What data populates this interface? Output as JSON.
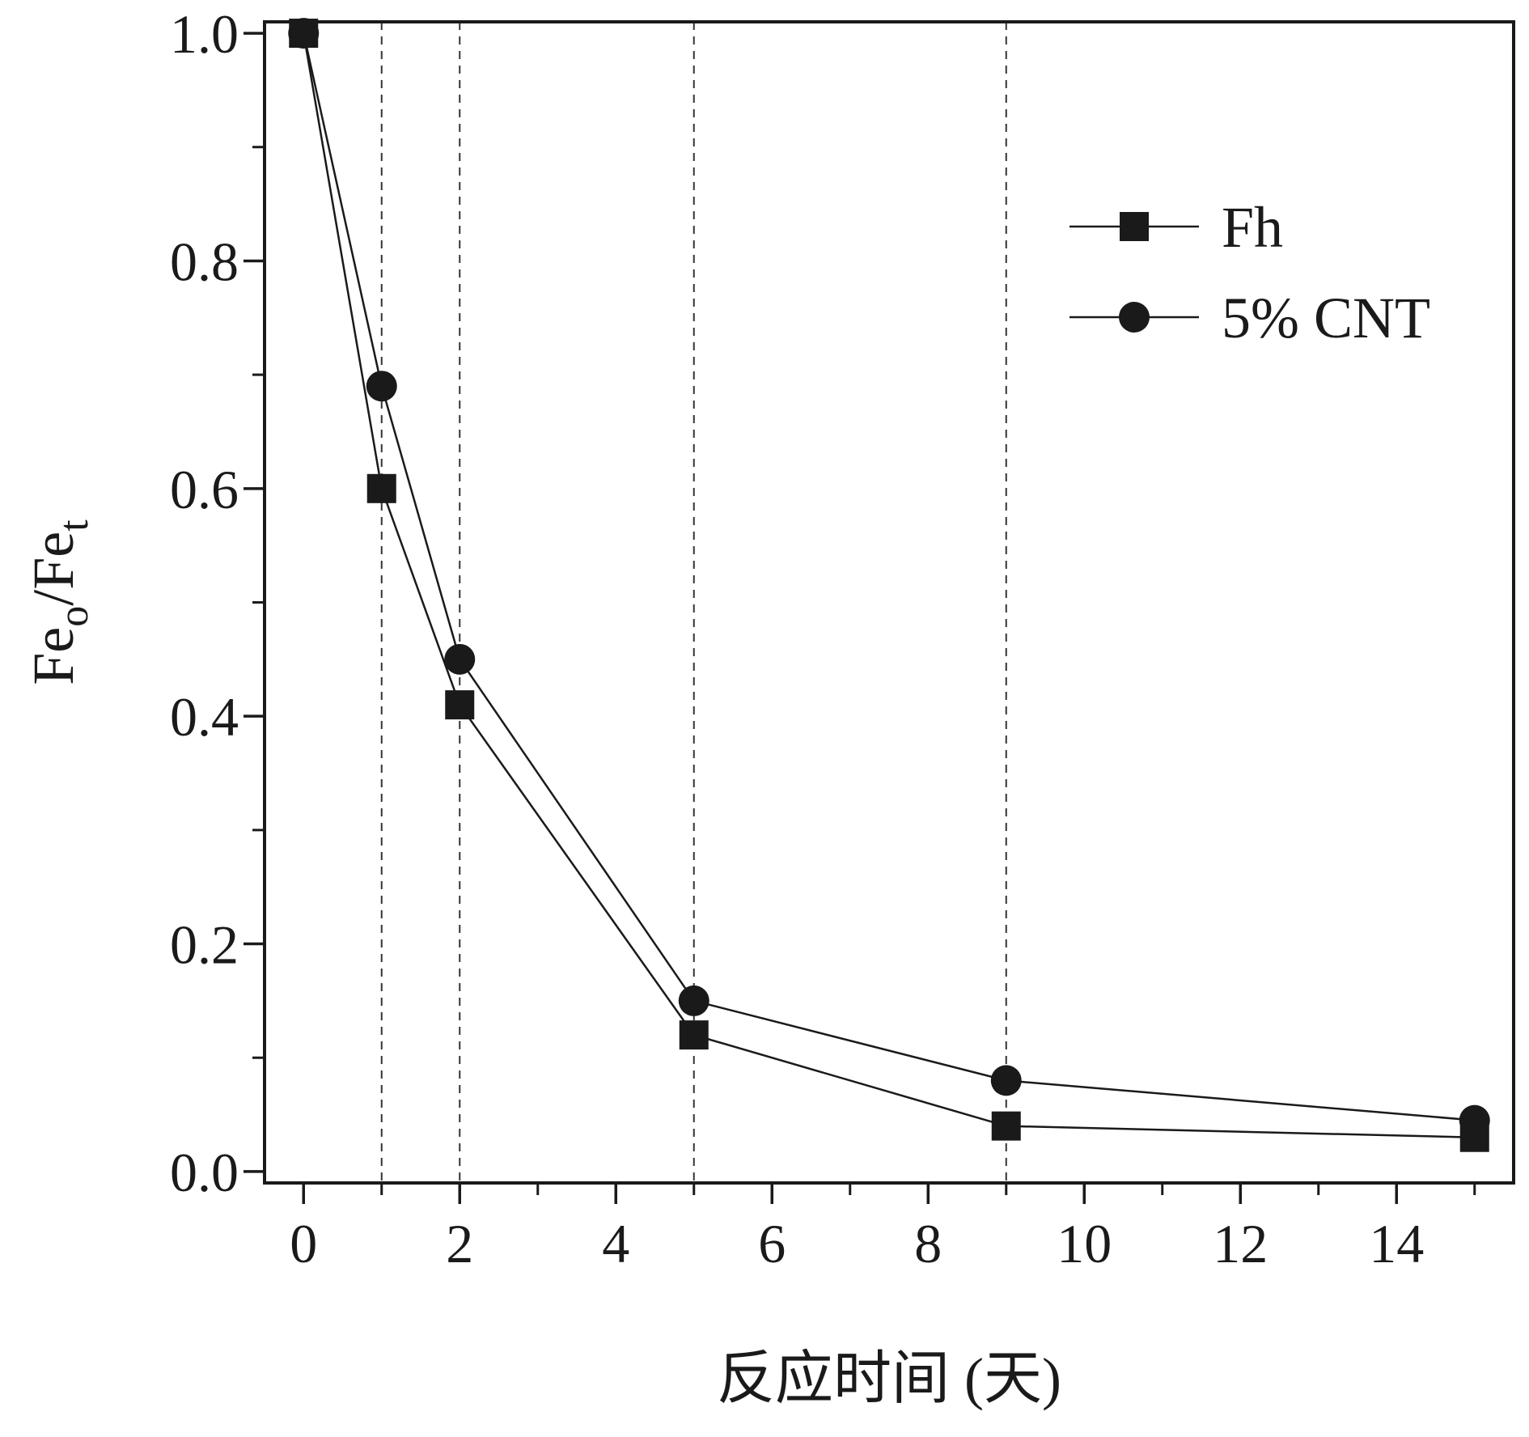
{
  "chart_data": {
    "type": "line",
    "xlabel": "反应时间 (天)",
    "ylabel": "Fe",
    "ylabel_sub1": "o",
    "ylabel_mid": "/Fe",
    "ylabel_sub2": "t",
    "xlim": [
      -0.5,
      15.5
    ],
    "ylim": [
      -0.01,
      1.01
    ],
    "x_ticks": [
      0,
      2,
      4,
      6,
      8,
      10,
      12,
      14
    ],
    "x_minor_ticks": [
      1,
      3,
      5,
      7,
      9,
      11,
      13,
      15
    ],
    "y_ticks": [
      0.0,
      0.2,
      0.4,
      0.6,
      0.8,
      1.0
    ],
    "y_tick_labels": [
      "0.0",
      "0.2",
      "0.4",
      "0.6",
      "0.8",
      "1.0"
    ],
    "y_minor_ticks": [
      0.1,
      0.3,
      0.5,
      0.7,
      0.9
    ],
    "reference_lines_x": [
      1,
      2,
      5,
      9
    ],
    "legend_position": "top-right",
    "x": [
      0,
      1,
      2,
      5,
      9,
      15
    ],
    "series": [
      {
        "name": "Fh",
        "marker": "square",
        "values": [
          1.0,
          0.6,
          0.41,
          0.12,
          0.04,
          0.03
        ]
      },
      {
        "name": "5% CNT",
        "marker": "circle",
        "values": [
          1.0,
          0.69,
          0.45,
          0.15,
          0.08,
          0.045
        ]
      }
    ],
    "colors": {
      "line": "#1a1a1a",
      "marker": "#1a1a1a",
      "reference": "#333333"
    }
  }
}
